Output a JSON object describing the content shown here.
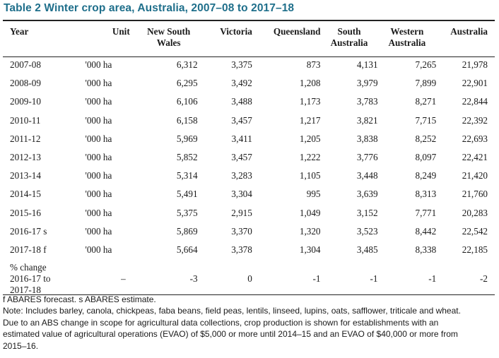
{
  "title": "Table 2 Winter crop area, Australia, 2007–08 to 2017–18",
  "headers": {
    "year": "Year",
    "unit": "Unit",
    "nsw_1": "New South",
    "nsw_2": "Wales",
    "vic": "Victoria",
    "qld": "Queensland",
    "sa_1": "South",
    "sa_2": "Australia",
    "wa_1": "Western",
    "wa_2": "Australia",
    "aus": "Australia"
  },
  "rows": [
    {
      "year": "2007-08",
      "unit": "'000 ha",
      "nsw": "6,312",
      "vic": "3,375",
      "qld": "873",
      "sa": "4,131",
      "wa": "7,265",
      "aus": "21,978"
    },
    {
      "year": "2008-09",
      "unit": "'000 ha",
      "nsw": "6,295",
      "vic": "3,492",
      "qld": "1,208",
      "sa": "3,979",
      "wa": "7,899",
      "aus": "22,901"
    },
    {
      "year": "2009-10",
      "unit": "'000 ha",
      "nsw": "6,106",
      "vic": "3,488",
      "qld": "1,173",
      "sa": "3,783",
      "wa": "8,271",
      "aus": "22,844"
    },
    {
      "year": "2010-11",
      "unit": "'000 ha",
      "nsw": "6,158",
      "vic": "3,457",
      "qld": "1,217",
      "sa": "3,821",
      "wa": "7,715",
      "aus": "22,392"
    },
    {
      "year": "2011-12",
      "unit": "'000 ha",
      "nsw": "5,969",
      "vic": "3,411",
      "qld": "1,205",
      "sa": "3,838",
      "wa": "8,252",
      "aus": "22,693"
    },
    {
      "year": "2012-13",
      "unit": "'000 ha",
      "nsw": "5,852",
      "vic": "3,457",
      "qld": "1,222",
      "sa": "3,776",
      "wa": "8,097",
      "aus": "22,421"
    },
    {
      "year": "2013-14",
      "unit": "'000 ha",
      "nsw": "5,314",
      "vic": "3,283",
      "qld": "1,105",
      "sa": "3,448",
      "wa": "8,249",
      "aus": "21,420"
    },
    {
      "year": "2014-15",
      "unit": "'000 ha",
      "nsw": "5,491",
      "vic": "3,304",
      "qld": "995",
      "sa": "3,639",
      "wa": "8,313",
      "aus": "21,760"
    },
    {
      "year": "2015-16",
      "unit": "'000 ha",
      "nsw": "5,375",
      "vic": "2,915",
      "qld": "1,049",
      "sa": "3,152",
      "wa": "7,771",
      "aus": "20,283"
    },
    {
      "year": "2016-17 s",
      "unit": "'000 ha",
      "nsw": "5,869",
      "vic": "3,370",
      "qld": "1,320",
      "sa": "3,523",
      "wa": "8,442",
      "aus": "22,542"
    },
    {
      "year": "2017-18 f",
      "unit": "'000 ha",
      "nsw": "5,664",
      "vic": "3,378",
      "qld": "1,304",
      "sa": "3,485",
      "wa": "8,338",
      "aus": "22,185"
    }
  ],
  "pct_change": {
    "label_1": "% change",
    "label_2": "2016-17 to",
    "label_3": "2017-18",
    "unit": "–",
    "nsw": "-3",
    "vic": "0",
    "qld": "-1",
    "sa": "-1",
    "wa": "-1",
    "aus": "-2"
  },
  "notes": {
    "line1": "f ABARES forecast. s ABARES estimate.",
    "line2": "Note: Includes barley, canola, chickpeas, faba beans, field peas, lentils, linseed, lupins, oats, safflower, triticale and wheat.",
    "line3": "Due to an ABS change in scope for agricultural data collections, crop production is shown for establishments with an",
    "line4": "estimated value of agricultural operations (EVAO) of $5,000 or more until 2014–15 and an EVAO of $40,000 or more from",
    "line5": "2015–16."
  }
}
